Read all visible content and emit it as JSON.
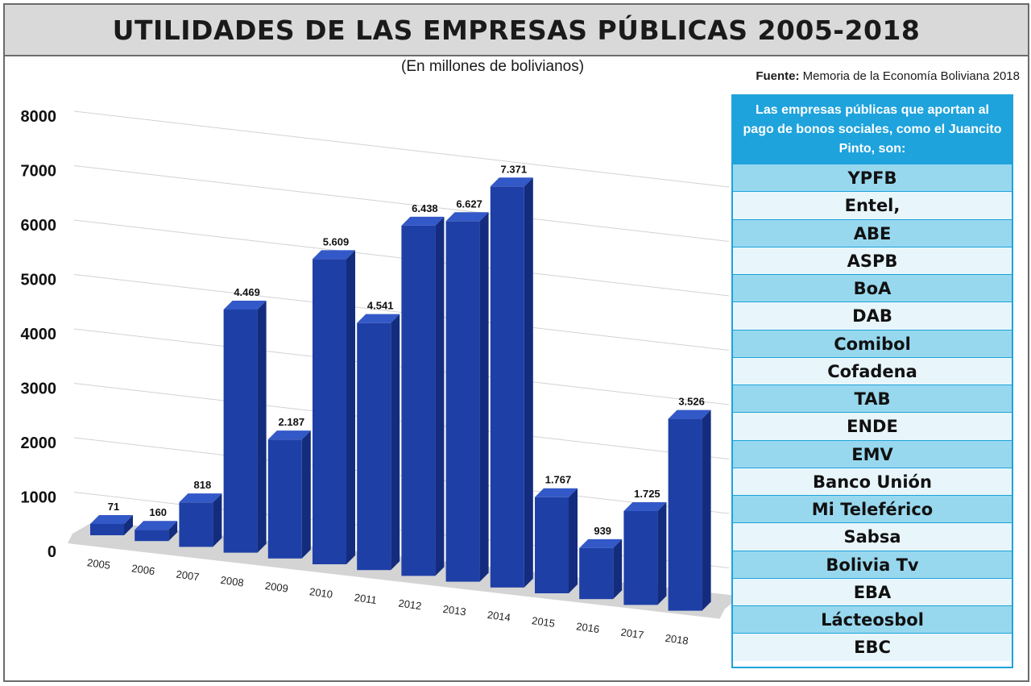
{
  "title": "UTILIDADES DE LAS EMPRESAS PÚBLICAS 2005-2018",
  "subtitle": "(En millones de bolivianos)",
  "source_label": "Fuente:",
  "source_text": "Memoria de la Economía Boliviana 2018",
  "panel": {
    "heading": "Las empresas públicas que aportan al pago de bonos sociales, como el Juancito Pinto, son:",
    "companies": [
      "YPFB",
      "Entel,",
      "ABE",
      "ASPB",
      "BoA",
      "DAB",
      "Comibol",
      "Cofadena",
      "TAB",
      "ENDE",
      "EMV",
      "Banco Unión",
      "Mi Teleférico",
      "Sabsa",
      "Bolivia Tv",
      "EBA",
      "Lácteosbol",
      "EBC"
    ]
  },
  "colors": {
    "bar_front": "#1e3fa6",
    "bar_side": "#132c7d",
    "bar_top": "#3358c7",
    "floor": "#d4d4d4",
    "accent": "#1ea3dc"
  },
  "chart_data": {
    "type": "bar",
    "title": "UTILIDADES DE LAS EMPRESAS PÚBLICAS 2005-2018",
    "subtitle": "(En millones de bolivianos)",
    "categories": [
      "2005",
      "2006",
      "2007",
      "2008",
      "2009",
      "2010",
      "2011",
      "2012",
      "2013",
      "2014",
      "2015",
      "2016",
      "2017",
      "2018"
    ],
    "values": [
      71,
      160,
      818,
      4469,
      2187,
      5609,
      4541,
      6438,
      6627,
      7371,
      1767,
      939,
      1725,
      3526
    ],
    "value_labels": [
      "71",
      "160",
      "818",
      "4.469",
      "2.187",
      "5.609",
      "4.541",
      "6.438",
      "6.627",
      "7.371",
      "1.767",
      "939",
      "1.725",
      "3.526"
    ],
    "yticks": [
      "0",
      "1000",
      "2000",
      "3000",
      "4000",
      "5000",
      "6000",
      "7000",
      "8000"
    ],
    "ylim": [
      0,
      8000
    ],
    "grid": true,
    "perspective": "3d"
  }
}
